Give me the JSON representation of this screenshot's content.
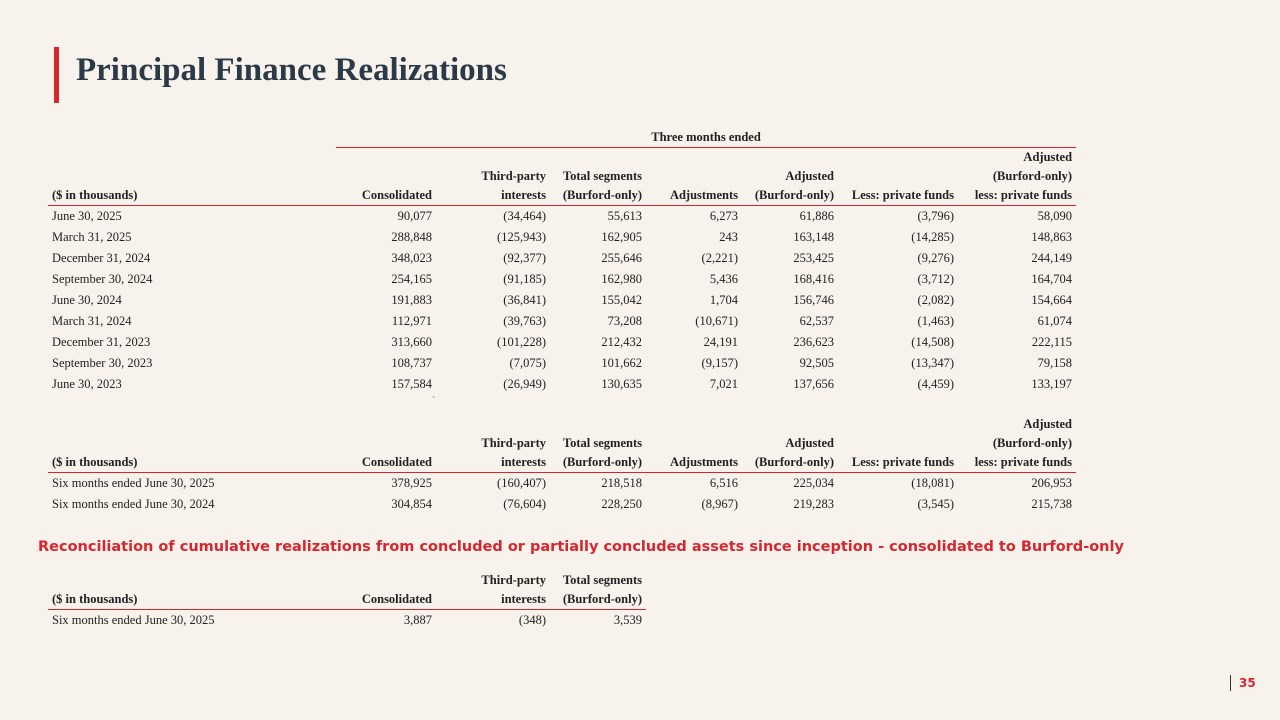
{
  "title": "Principal Finance Realizations",
  "page_number": "35",
  "note_mark": "`",
  "colors": {
    "accent": "#d8262f",
    "title": "#2c3a48",
    "background": "#f7f2ec"
  },
  "table1": {
    "super_header": "Three months ended",
    "headers": {
      "label": "($ in thousands)",
      "consolidated": "Consolidated",
      "third_party_1": "Third-party",
      "third_party_2": "interests",
      "total_1": "Total segments",
      "total_2": "(Burford-only)",
      "adjustments": "Adjustments",
      "adjusted_1": "Adjusted",
      "adjusted_2": "(Burford-only)",
      "less_private": "Less: private funds",
      "adj_less_1": "Adjusted",
      "adj_less_2": "(Burford-only)",
      "adj_less_3": "less: private funds"
    },
    "rows": [
      [
        "June 30, 2025",
        "90,077",
        "(34,464)",
        "55,613",
        "6,273",
        "61,886",
        "(3,796)",
        "58,090"
      ],
      [
        "March 31, 2025",
        "288,848",
        "(125,943)",
        "162,905",
        "243",
        "163,148",
        "(14,285)",
        "148,863"
      ],
      [
        "December 31, 2024",
        "348,023",
        "(92,377)",
        "255,646",
        "(2,221)",
        "253,425",
        "(9,276)",
        "244,149"
      ],
      [
        "September 30, 2024",
        "254,165",
        "(91,185)",
        "162,980",
        "5,436",
        "168,416",
        "(3,712)",
        "164,704"
      ],
      [
        "June 30, 2024",
        "191,883",
        "(36,841)",
        "155,042",
        "1,704",
        "156,746",
        "(2,082)",
        "154,664"
      ],
      [
        "March 31, 2024",
        "112,971",
        "(39,763)",
        "73,208",
        "(10,671)",
        "62,537",
        "(1,463)",
        "61,074"
      ],
      [
        "December 31, 2023",
        "313,660",
        "(101,228)",
        "212,432",
        "24,191",
        "236,623",
        "(14,508)",
        "222,115"
      ],
      [
        "September 30, 2023",
        "108,737",
        "(7,075)",
        "101,662",
        "(9,157)",
        "92,505",
        "(13,347)",
        "79,158"
      ],
      [
        "June 30, 2023",
        "157,584",
        "(26,949)",
        "130,635",
        "7,021",
        "137,656",
        "(4,459)",
        "133,197"
      ]
    ]
  },
  "table2": {
    "headers": {
      "label": "($ in thousands)",
      "consolidated": "Consolidated",
      "third_party_1": "Third-party",
      "third_party_2": "interests",
      "total_1": "Total segments",
      "total_2": "(Burford-only)",
      "adjustments": "Adjustments",
      "adjusted_1": "Adjusted",
      "adjusted_2": "(Burford-only)",
      "less_private": "Less: private funds",
      "adj_less_1": "Adjusted",
      "adj_less_2": "(Burford-only)",
      "adj_less_3": "less: private funds"
    },
    "rows": [
      [
        "Six months ended June 30, 2025",
        "378,925",
        "(160,407)",
        "218,518",
        "6,516",
        "225,034",
        "(18,081)",
        "206,953"
      ],
      [
        "Six months ended June 30, 2024",
        "304,854",
        "(76,604)",
        "228,250",
        "(8,967)",
        "219,283",
        "(3,545)",
        "215,738"
      ]
    ]
  },
  "section_heading": "Reconciliation of cumulative realizations from concluded or partially concluded assets since inception - consolidated to Burford-only",
  "table3": {
    "headers": {
      "label": "($ in thousands)",
      "consolidated": "Consolidated",
      "third_party_1": "Third-party",
      "third_party_2": "interests",
      "total_1": "Total segments",
      "total_2": "(Burford-only)"
    },
    "rows": [
      [
        "Six months ended June 30, 2025",
        "3,887",
        "(348)",
        "3,539"
      ]
    ]
  }
}
